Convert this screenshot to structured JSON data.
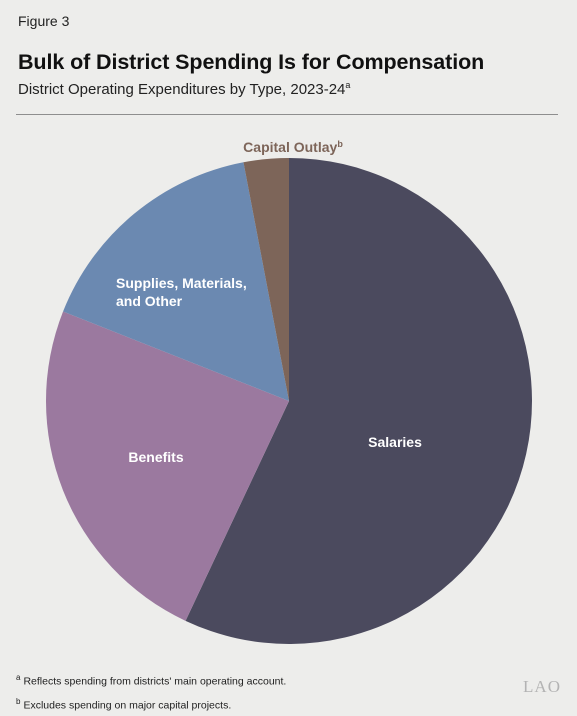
{
  "figure": {
    "label": "Figure 3",
    "title": "Bulk of District Spending Is for Compensation",
    "subtitle": "District Operating Expenditures by Type, 2023-24",
    "subtitle_note": "a",
    "footnotes": [
      {
        "mark": "a",
        "text": "Reflects spending from districts' main operating account."
      },
      {
        "mark": "b",
        "text": "Excludes spending on major capital projects."
      }
    ],
    "logo": "LAO"
  },
  "chart_data": {
    "type": "pie",
    "unit": "percent of operating expenditures",
    "slices": [
      {
        "label": "Salaries",
        "value": 57,
        "color": "#4b4a5e",
        "label_color": "#ffffff"
      },
      {
        "label": "Benefits",
        "value": 24,
        "color": "#9b799f",
        "label_color": "#ffffff"
      },
      {
        "label": "Supplies, Materials, and Other",
        "label_lines": [
          "Supplies, Materials,",
          "and Other"
        ],
        "value": 16,
        "color": "#6b89b1",
        "label_color": "#ffffff"
      },
      {
        "label": "Capital Outlay",
        "value": 3,
        "color": "#7d6559",
        "label_color": "#7d6559",
        "note": "b"
      }
    ],
    "start": "top",
    "direction": "clockwise",
    "legend": "none"
  }
}
